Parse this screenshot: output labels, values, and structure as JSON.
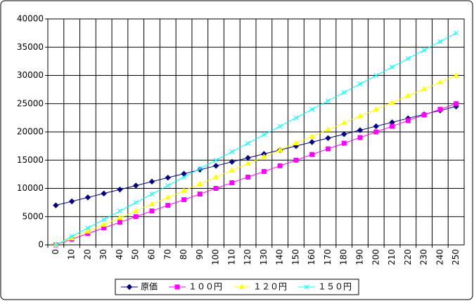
{
  "chart_data": {
    "type": "line",
    "categories": [
      0,
      10,
      20,
      30,
      40,
      50,
      60,
      70,
      80,
      90,
      100,
      110,
      120,
      130,
      140,
      150,
      160,
      170,
      180,
      190,
      200,
      210,
      220,
      230,
      240,
      250
    ],
    "series": [
      {
        "name": "原価",
        "color": "#000080",
        "marker": "diamond",
        "values": [
          7000,
          7700,
          8400,
          9100,
          9800,
          10500,
          11200,
          11900,
          12600,
          13300,
          14000,
          14700,
          15400,
          16100,
          16800,
          17500,
          18200,
          18900,
          19600,
          20300,
          21000,
          21700,
          22400,
          23100,
          23800,
          24500
        ]
      },
      {
        "name": "１００円",
        "color": "#ff00ff",
        "marker": "square",
        "values": [
          0,
          1000,
          2000,
          3000,
          4000,
          5000,
          6000,
          7000,
          8000,
          9000,
          10000,
          11000,
          12000,
          13000,
          14000,
          15000,
          16000,
          17000,
          18000,
          19000,
          20000,
          21000,
          22000,
          23000,
          24000,
          25000
        ]
      },
      {
        "name": "１２０円",
        "color": "#ffff00",
        "marker": "triangle",
        "values": [
          0,
          1200,
          2400,
          3600,
          4800,
          6000,
          7200,
          8400,
          9600,
          10800,
          12000,
          13200,
          14400,
          15600,
          16800,
          18000,
          19200,
          20400,
          21600,
          22800,
          24000,
          25200,
          26400,
          27600,
          28800,
          30000
        ]
      },
      {
        "name": "１５０円",
        "color": "#00ffff",
        "marker": "x",
        "values": [
          0,
          1500,
          3000,
          4500,
          6000,
          7500,
          9000,
          10500,
          12000,
          13500,
          15000,
          16500,
          18000,
          19500,
          21000,
          22500,
          24000,
          25500,
          27000,
          28500,
          30000,
          31500,
          33000,
          34500,
          36000,
          37500
        ]
      }
    ],
    "ylim": [
      0,
      40000
    ],
    "yticks": [
      0,
      5000,
      10000,
      15000,
      20000,
      25000,
      30000,
      35000,
      40000
    ],
    "grid": true,
    "legend": "bottom"
  }
}
